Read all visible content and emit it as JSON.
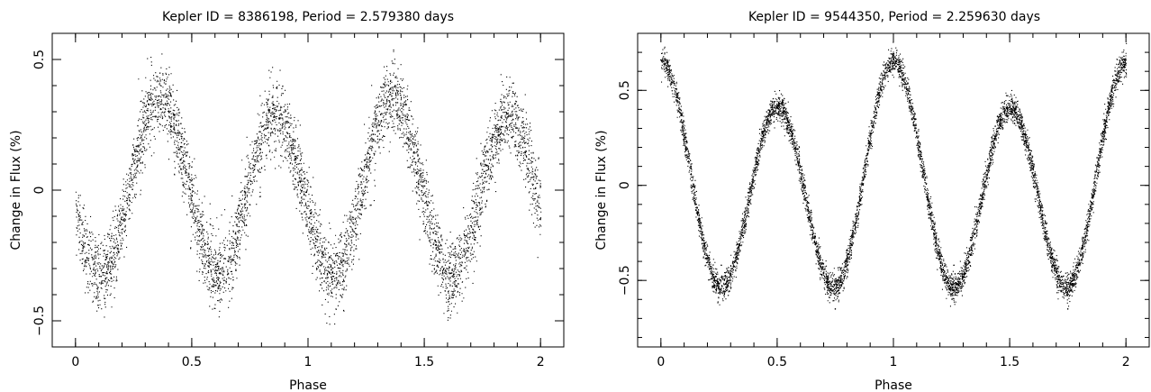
{
  "chart_data": [
    {
      "type": "scatter",
      "title": "Kepler ID = 8386198, Period = 2.579380 days",
      "xlabel": "Phase",
      "ylabel": "Change in Flux (%)",
      "xlim": [
        -0.1,
        2.1
      ],
      "ylim": [
        -0.6,
        0.6
      ],
      "xticks": [
        0,
        0.5,
        1,
        1.5,
        2
      ],
      "xtick_labels": [
        "0",
        "0.5",
        "1",
        "1.5",
        "2"
      ],
      "yticks": [
        -0.5,
        0,
        0.5
      ],
      "ytick_labels": [
        "−0.5",
        "0",
        "0.5"
      ],
      "grid": false,
      "marker_color": "#000000",
      "model": {
        "description_of_curve": "double-humped rotational modulation, period 1 in phase",
        "offset": 0.0,
        "harmonics": [
          {
            "n": 2,
            "a": -0.29,
            "phi": 0.5
          },
          {
            "n": 1,
            "a": 0.035,
            "phi": 1.2
          }
        ],
        "scatter": 0.07,
        "n_points": 5200
      },
      "key_points": [
        {
          "x": 0.11,
          "y": -0.33
        },
        {
          "x": 0.36,
          "y": 0.36
        },
        {
          "x": 0.61,
          "y": -0.28
        },
        {
          "x": 0.86,
          "y": 0.28
        },
        {
          "x": 1.11,
          "y": -0.33
        },
        {
          "x": 1.36,
          "y": 0.36
        },
        {
          "x": 1.61,
          "y": -0.28
        },
        {
          "x": 1.86,
          "y": 0.28
        }
      ]
    },
    {
      "type": "scatter",
      "title": "Kepler ID = 9544350, Period = 2.259630 days",
      "xlabel": "Phase",
      "ylabel": "Change in Flux (%)",
      "xlim": [
        -0.1,
        2.1
      ],
      "ylim": [
        -0.85,
        0.8
      ],
      "xticks": [
        0,
        0.5,
        1,
        1.5,
        2
      ],
      "xtick_labels": [
        "0",
        "0.5",
        "1",
        "1.5",
        "2"
      ],
      "yticks": [
        -0.5,
        0,
        0.5
      ],
      "ytick_labels": [
        "−0.5",
        "0",
        "0.5"
      ],
      "grid": false,
      "marker_color": "#000000",
      "model": {
        "offset": 0.0,
        "harmonics": [
          {
            "n": 2,
            "a": 0.53,
            "phi": 0.0
          },
          {
            "n": 1,
            "a": 0.12,
            "phi": 0.0
          }
        ],
        "scatter": 0.035,
        "n_points": 6500
      },
      "key_points": [
        {
          "x": 0.0,
          "y": 0.66
        },
        {
          "x": 0.26,
          "y": -0.42
        },
        {
          "x": 0.5,
          "y": 0.41
        },
        {
          "x": 0.75,
          "y": -0.65
        },
        {
          "x": 1.0,
          "y": 0.66
        },
        {
          "x": 1.26,
          "y": -0.42
        },
        {
          "x": 1.5,
          "y": 0.41
        },
        {
          "x": 1.75,
          "y": -0.65
        },
        {
          "x": 2.0,
          "y": 0.66
        }
      ]
    }
  ]
}
